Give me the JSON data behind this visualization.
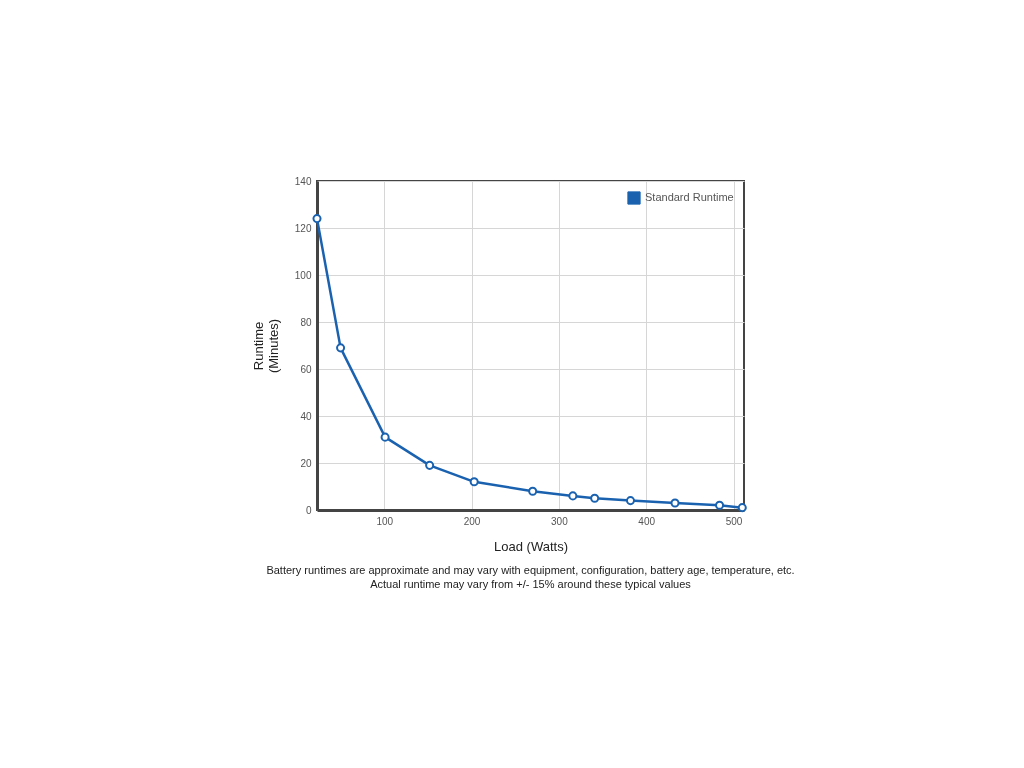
{
  "chart_data": {
    "type": "line",
    "x": [
      23,
      50,
      101,
      152,
      203,
      270,
      316,
      341,
      382,
      433,
      484,
      510
    ],
    "series": [
      {
        "name": "Standard Runtime",
        "color": "#1a62b0",
        "values": [
          124,
          69,
          31,
          19,
          12,
          8,
          6,
          5,
          4,
          3,
          2,
          1
        ]
      }
    ],
    "xlabel": "Load (Watts)",
    "ylabel": "Runtime\n(Minutes)",
    "xlim": [
      23,
      512
    ],
    "ylim": [
      0,
      140
    ],
    "xticks": [
      100,
      200,
      300,
      400,
      500
    ],
    "yticks": [
      0,
      20,
      40,
      60,
      80,
      100,
      120,
      140
    ],
    "grid": true,
    "legend": "top right",
    "marker": "circle",
    "line_style": "solid",
    "annotations": [
      "Battery runtimes are approximate and may vary with equipment, configuration, battery age, temperature, etc.",
      "Actual runtime may vary from +/- 15% around these typical values"
    ]
  }
}
